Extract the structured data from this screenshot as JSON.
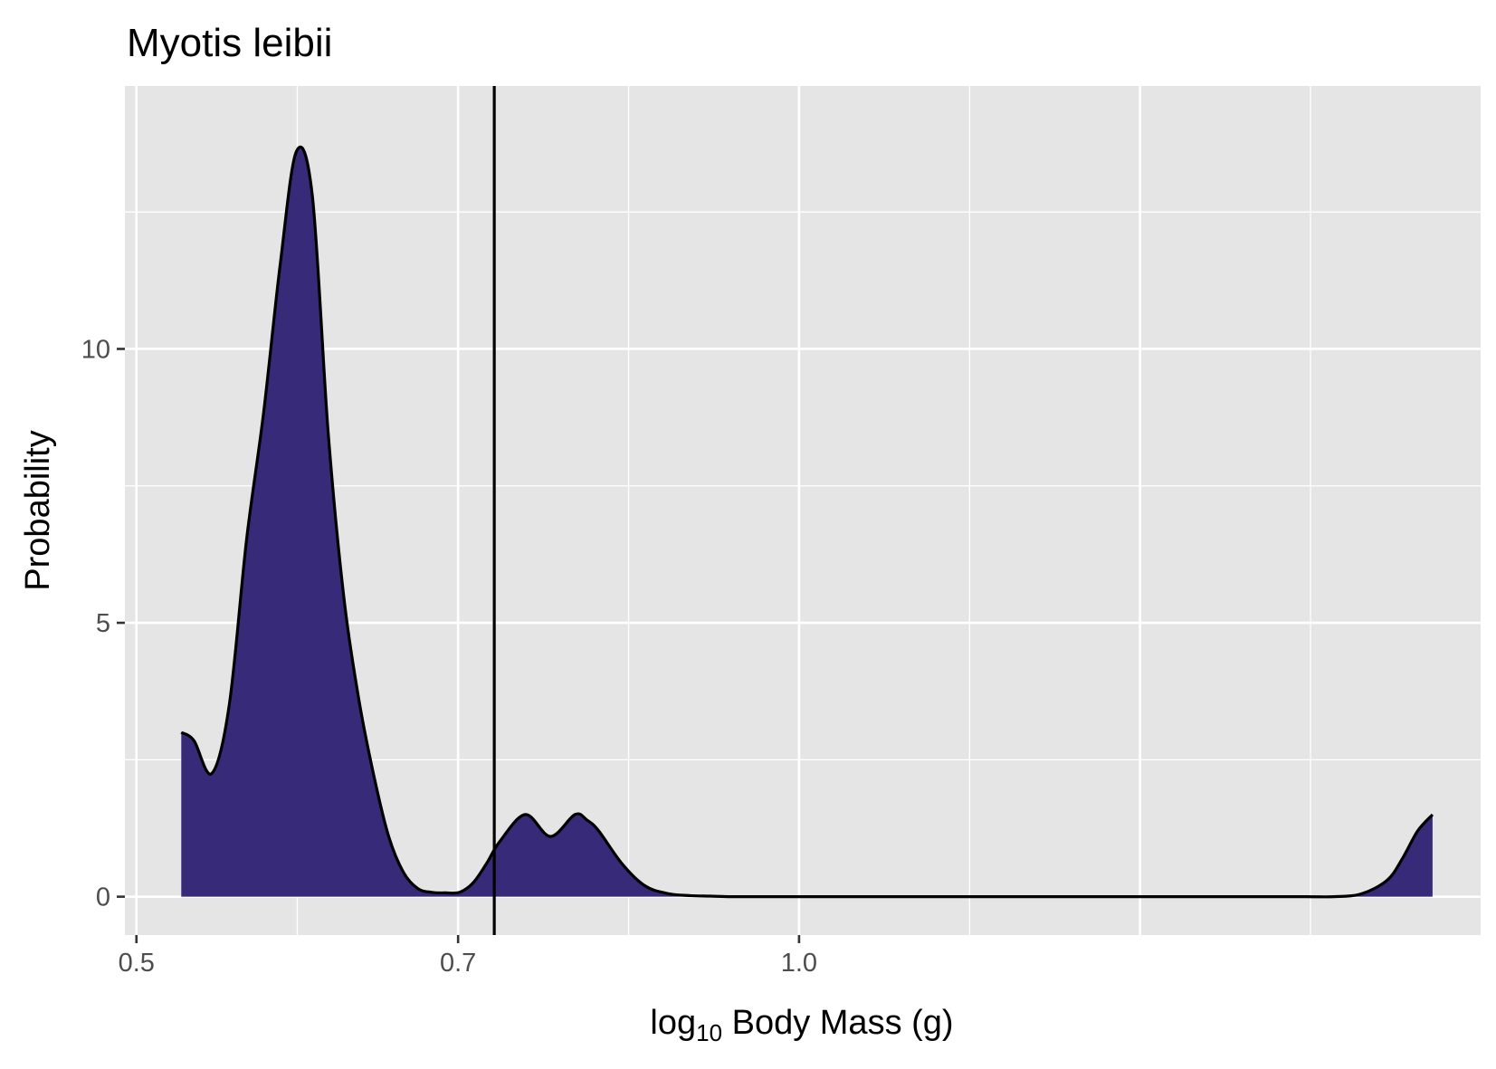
{
  "chart_data": {
    "type": "area",
    "title": "Myotis leibii",
    "xlabel_main": "log",
    "xlabel_sub": "10",
    "xlabel_rest": " Body Mass (g)",
    "ylabel": "Probability",
    "x_scale": "log",
    "x_ticks": [
      {
        "value": 0.5,
        "label": "0.5"
      },
      {
        "value": 0.7,
        "label": "0.7"
      },
      {
        "value": 1.0,
        "label": "1.0"
      }
    ],
    "y_ticks": [
      {
        "value": 0,
        "label": "0"
      },
      {
        "value": 5,
        "label": "5"
      },
      {
        "value": 10,
        "label": "10"
      }
    ],
    "xlim": [
      0.494,
      2.04
    ],
    "ylim": [
      -0.7,
      14.8
    ],
    "grid": true,
    "fill_color": "#372A78",
    "line_color": "#000000",
    "panel_color": "#E5E5E5",
    "vline_x": 0.727,
    "series": [
      {
        "x": [
          0.524,
          0.531,
          0.541,
          0.551,
          0.561,
          0.571,
          0.581,
          0.591,
          0.601,
          0.611,
          0.621,
          0.631,
          0.641,
          0.651,
          0.661,
          0.671,
          0.681,
          0.691,
          0.701,
          0.711,
          0.721,
          0.731,
          0.751,
          0.771,
          0.791,
          0.801,
          0.811,
          0.831,
          0.851,
          0.871,
          0.891,
          0.911,
          0.931,
          0.951,
          1.0,
          1.1,
          1.2,
          1.3,
          1.4,
          1.5,
          1.6,
          1.7,
          1.75,
          1.8,
          1.85,
          1.88,
          1.91,
          1.94
        ],
        "y": [
          3.0,
          2.85,
          2.25,
          3.5,
          6.5,
          8.8,
          11.5,
          13.6,
          12.8,
          8.5,
          5.5,
          3.6,
          2.2,
          1.1,
          0.45,
          0.15,
          0.08,
          0.07,
          0.08,
          0.25,
          0.6,
          1.0,
          1.5,
          1.1,
          1.5,
          1.4,
          1.2,
          0.6,
          0.2,
          0.06,
          0.02,
          0.01,
          0.0,
          0.0,
          0.0,
          0.0,
          0.0,
          0.0,
          0.0,
          0.0,
          0.0,
          0.0,
          0.0,
          0.05,
          0.3,
          0.7,
          1.2,
          1.5
        ]
      }
    ]
  }
}
